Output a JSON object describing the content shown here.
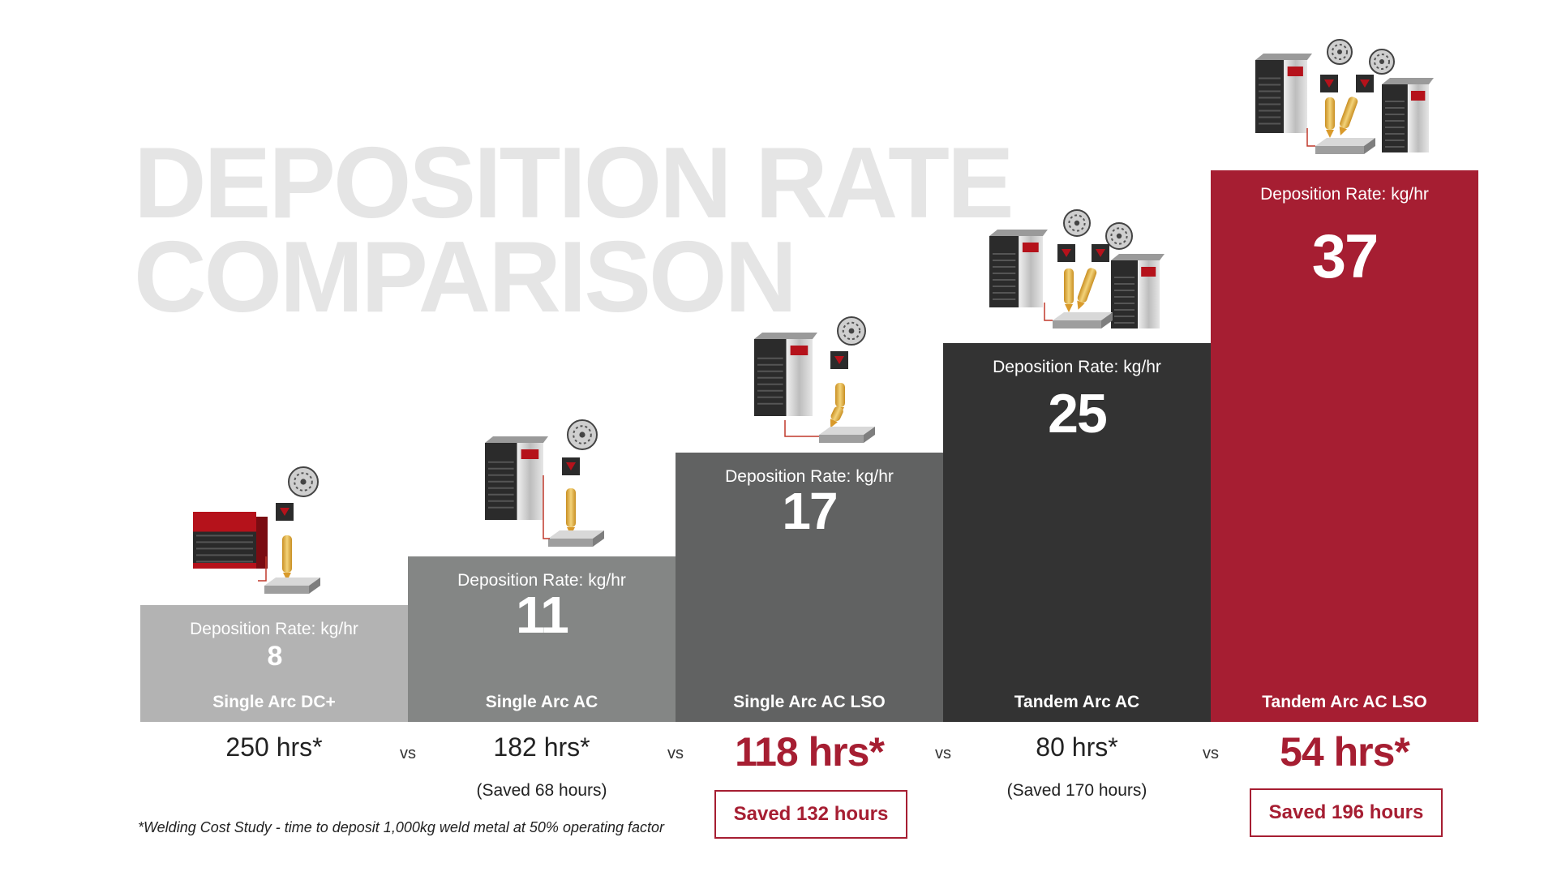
{
  "title": {
    "line1": "DEPOSITION RATE",
    "line2": "COMPARISON"
  },
  "chart_data": {
    "type": "bar",
    "categories": [
      "Single Arc DC+",
      "Single Arc AC",
      "Single Arc AC LSO",
      "Tandem Arc AC",
      "Tandem Arc AC LSO"
    ],
    "series": [
      {
        "name": "Deposition Rate: kg/hr",
        "values": [
          8,
          11,
          17,
          25,
          37
        ]
      }
    ],
    "ylabel": "Deposition Rate: kg/hr",
    "bar_colors": [
      "#b3b3b3",
      "#848685",
      "#616262",
      "#333333",
      "#a61e32"
    ],
    "hours": [
      {
        "label": "250 hrs*",
        "highlight": false,
        "saved": ""
      },
      {
        "label": "182 hrs*",
        "highlight": false,
        "saved": "(Saved 68 hours)"
      },
      {
        "label": "118 hrs*",
        "highlight": true,
        "saved": "Saved 132 hours"
      },
      {
        "label": "80 hrs*",
        "highlight": false,
        "saved": "(Saved 170 hours)"
      },
      {
        "label": "54 hrs*",
        "highlight": true,
        "saved": "Saved 196 hours"
      }
    ],
    "vs_label": "vs",
    "grid": false
  },
  "icons": [
    "power-source-red-icon",
    "power-source-silver-icon",
    "wire-spool-icon",
    "welding-torch-icon",
    "workpiece-icon"
  ],
  "footnote": "*Welding Cost Study - time to deposit 1,000kg weld metal at 50% operating factor",
  "colors": {
    "accent": "#a61e32",
    "title": "#e5e5e5",
    "torch": "#e6b84a"
  }
}
